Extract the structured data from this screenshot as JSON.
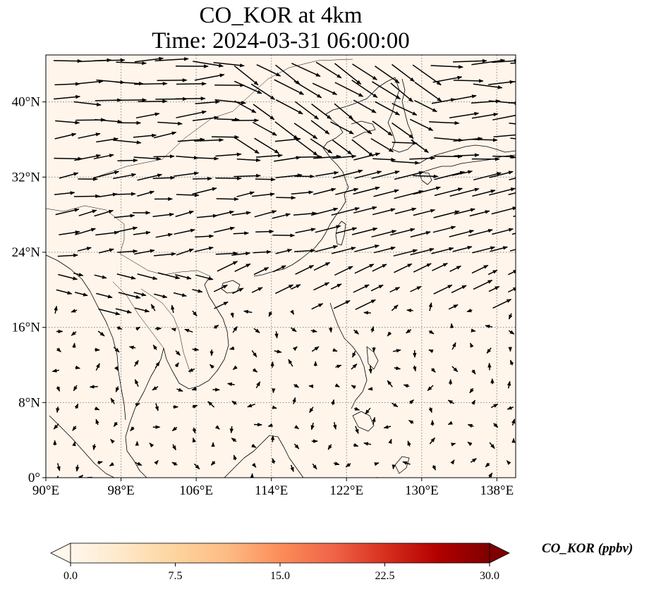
{
  "title": {
    "line1": "CO_KOR at 4km",
    "line2": "Time: 2024-03-31 06:00:00"
  },
  "map": {
    "lon_range": [
      90,
      140
    ],
    "lat_range": [
      0,
      45
    ],
    "x_ticks": [
      "90°E",
      "98°E",
      "106°E",
      "114°E",
      "122°E",
      "130°E",
      "138°E"
    ],
    "x_tick_values": [
      90,
      98,
      106,
      114,
      122,
      130,
      138
    ],
    "y_ticks": [
      "0°",
      "8°N",
      "16°N",
      "24°N",
      "32°N",
      "40°N"
    ],
    "y_tick_values": [
      0,
      8,
      16,
      24,
      32,
      40
    ],
    "gridlines": true,
    "field_color": "#fff5eb",
    "vector_color": "#000000"
  },
  "colorbar": {
    "label": "CO_KOR (ppbv)",
    "ticks": [
      "0.0",
      "7.5",
      "15.0",
      "22.5",
      "30.0"
    ],
    "range": [
      0,
      30
    ],
    "extend": "both",
    "colormap": "OrRd"
  }
}
